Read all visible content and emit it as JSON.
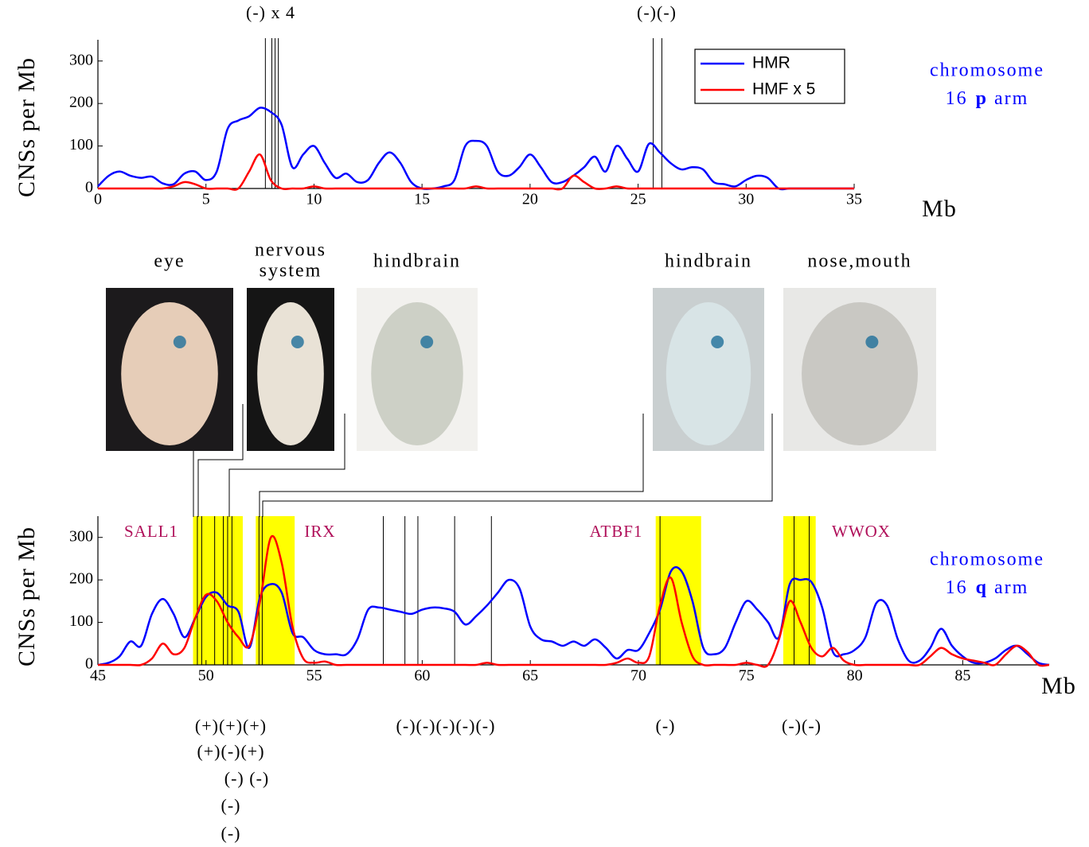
{
  "chart_data": [
    {
      "type": "line",
      "y_label": "CNSs per Mb",
      "x_unit": "Mb",
      "side_label": {
        "text": "chromosome",
        "number": "16",
        "arm": "p",
        "suffix": "arm"
      },
      "annotations": [
        "(-) x 4",
        "(-)(-)"
      ],
      "xlim": [
        0,
        35
      ],
      "xticks": [
        0,
        5,
        10,
        15,
        20,
        25,
        30,
        35
      ],
      "ylim": [
        0,
        350
      ],
      "yticks": [
        0,
        100,
        200,
        300
      ],
      "legend": true,
      "markers": [
        7.75,
        8.05,
        8.2,
        8.35,
        25.7,
        26.1
      ],
      "x": [
        0,
        0.5,
        1,
        1.5,
        2,
        2.5,
        3,
        3.5,
        4,
        4.5,
        5,
        5.5,
        6,
        6.5,
        7,
        7.5,
        8,
        8.5,
        9,
        9.5,
        10,
        10.5,
        11,
        11.5,
        12,
        12.5,
        13,
        13.5,
        14,
        14.5,
        15,
        15.5,
        16,
        16.5,
        17,
        17.5,
        18,
        18.5,
        19,
        19.5,
        20,
        20.5,
        21,
        21.5,
        22,
        22.5,
        23,
        23.5,
        24,
        24.5,
        25,
        25.5,
        26,
        26.5,
        27,
        27.5,
        28,
        28.5,
        29,
        29.5,
        30,
        30.5,
        31,
        31.5,
        32,
        32.5,
        33,
        33.5,
        34,
        34.5,
        35
      ],
      "series": [
        {
          "name": "HMR",
          "color": "#0000ff",
          "values": [
            5,
            30,
            40,
            30,
            25,
            28,
            12,
            10,
            35,
            40,
            20,
            40,
            140,
            160,
            170,
            190,
            180,
            150,
            50,
            80,
            100,
            60,
            25,
            35,
            15,
            20,
            60,
            85,
            60,
            15,
            0,
            0,
            5,
            20,
            100,
            112,
            100,
            40,
            30,
            50,
            80,
            50,
            15,
            15,
            30,
            50,
            75,
            40,
            100,
            70,
            40,
            105,
            85,
            60,
            45,
            50,
            45,
            15,
            10,
            5,
            20,
            30,
            25,
            0,
            0,
            0,
            0,
            0,
            0,
            0,
            0
          ]
        },
        {
          "name": "HMF x 5",
          "color": "#ff0000",
          "values": [
            0,
            0,
            0,
            0,
            0,
            0,
            0,
            5,
            15,
            10,
            0,
            0,
            0,
            0,
            40,
            80,
            20,
            0,
            0,
            0,
            5,
            0,
            0,
            0,
            0,
            0,
            0,
            0,
            0,
            0,
            0,
            0,
            0,
            0,
            0,
            5,
            0,
            0,
            0,
            0,
            0,
            0,
            0,
            0,
            30,
            15,
            0,
            0,
            5,
            0,
            0,
            0,
            0,
            0,
            0,
            0,
            0,
            0,
            0,
            0,
            0,
            0,
            0,
            0,
            0,
            0,
            0,
            0,
            0,
            0,
            0
          ]
        }
      ]
    },
    {
      "type": "line",
      "y_label": "CNSs per Mb",
      "x_unit": "Mb",
      "side_label": {
        "text": "chromosome",
        "number": "16",
        "arm": "q",
        "suffix": "arm"
      },
      "gene_labels": [
        "SALL1",
        "IRX",
        "ATBF1",
        "WWOX"
      ],
      "annotations": [
        "(+)(+)(+)",
        "(+)(-)(+)",
        "(-) (-)",
        "(-)",
        "(-)",
        "(-)(-)(-)(-)(-)",
        "(-)",
        "(-)(-)"
      ],
      "xlim": [
        45,
        89
      ],
      "xticks": [
        45,
        50,
        55,
        60,
        65,
        70,
        75,
        80,
        85
      ],
      "ylim": [
        0,
        350
      ],
      "yticks": [
        0,
        100,
        200,
        300
      ],
      "legend": false,
      "regions": [
        [
          49.4,
          51.7
        ],
        [
          52.3,
          54.1
        ],
        [
          70.8,
          72.9
        ],
        [
          76.7,
          78.2
        ]
      ],
      "markers": [
        49.6,
        49.8,
        50.4,
        50.8,
        51.0,
        51.2,
        52.45,
        52.6,
        58.2,
        59.2,
        59.8,
        61.5,
        63.2,
        71.0,
        77.2,
        77.9
      ],
      "x": [
        45,
        45.5,
        46,
        46.5,
        47,
        47.5,
        48,
        48.5,
        49,
        49.5,
        50,
        50.5,
        51,
        51.5,
        52,
        52.5,
        53,
        53.5,
        54,
        54.5,
        55,
        55.5,
        56,
        56.5,
        57,
        57.5,
        58,
        58.5,
        59,
        59.5,
        60,
        60.5,
        61,
        61.5,
        62,
        62.5,
        63,
        63.5,
        64,
        64.5,
        65,
        65.5,
        66,
        66.5,
        67,
        67.5,
        68,
        68.5,
        69,
        69.5,
        70,
        70.5,
        71,
        71.5,
        72,
        72.5,
        73,
        73.5,
        74,
        74.5,
        75,
        75.5,
        76,
        76.5,
        77,
        77.5,
        78,
        78.5,
        79,
        79.5,
        80,
        80.5,
        81,
        81.5,
        82,
        82.5,
        83,
        83.5,
        84,
        84.5,
        85,
        85.5,
        86,
        86.5,
        87,
        87.5,
        88,
        88.5,
        89
      ],
      "series": [
        {
          "name": "HMR",
          "color": "#0000ff",
          "values": [
            0,
            5,
            20,
            55,
            45,
            120,
            155,
            120,
            65,
            110,
            160,
            170,
            140,
            125,
            40,
            160,
            190,
            170,
            75,
            65,
            35,
            25,
            25,
            25,
            60,
            130,
            135,
            130,
            125,
            120,
            130,
            135,
            133,
            125,
            95,
            115,
            140,
            170,
            200,
            180,
            90,
            60,
            55,
            45,
            55,
            45,
            60,
            40,
            15,
            35,
            35,
            75,
            130,
            220,
            220,
            150,
            40,
            25,
            40,
            100,
            150,
            130,
            100,
            65,
            190,
            200,
            195,
            135,
            30,
            25,
            35,
            65,
            145,
            140,
            60,
            10,
            10,
            40,
            85,
            45,
            20,
            5,
            5,
            15,
            35,
            45,
            25,
            5,
            0
          ]
        },
        {
          "name": "HMF x 5",
          "color": "#ff0000",
          "values": [
            0,
            0,
            0,
            0,
            0,
            15,
            50,
            25,
            40,
            110,
            165,
            150,
            100,
            65,
            45,
            150,
            300,
            240,
            90,
            15,
            5,
            8,
            0,
            0,
            0,
            0,
            0,
            0,
            0,
            0,
            0,
            0,
            0,
            0,
            0,
            0,
            5,
            0,
            0,
            0,
            0,
            0,
            0,
            0,
            0,
            0,
            0,
            0,
            5,
            15,
            5,
            20,
            140,
            205,
            100,
            20,
            0,
            0,
            0,
            0,
            5,
            0,
            0,
            60,
            150,
            100,
            40,
            20,
            40,
            10,
            0,
            0,
            0,
            0,
            0,
            0,
            0,
            20,
            40,
            25,
            15,
            10,
            5,
            0,
            25,
            45,
            30,
            0,
            0
          ]
        }
      ]
    }
  ],
  "images": [
    {
      "label": [
        "eye"
      ]
    },
    {
      "label": [
        "nervous",
        "system"
      ]
    },
    {
      "label": [
        "hindbrain"
      ]
    },
    {
      "label": [
        "hindbrain"
      ]
    },
    {
      "label": [
        "nose,mouth"
      ]
    }
  ]
}
